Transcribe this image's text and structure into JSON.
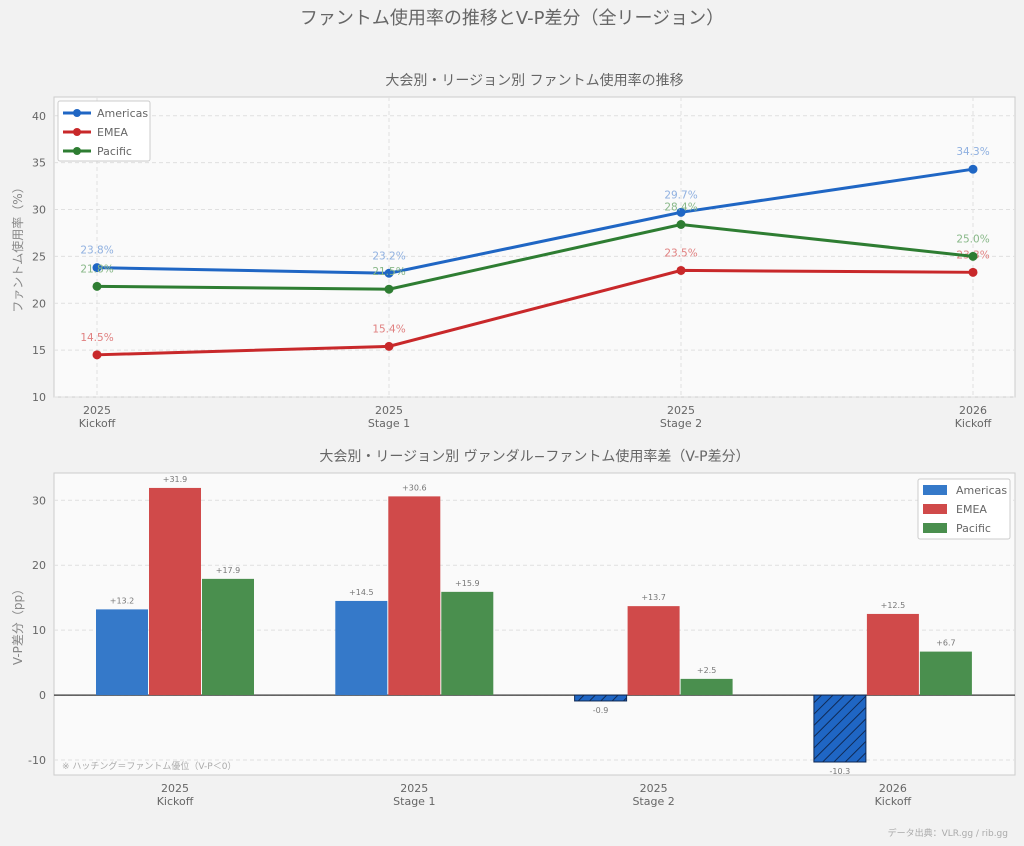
{
  "suptitle": "ファントム使用率の推移とV-P差分（全リージョン）",
  "source": "データ出典：VLR.gg / rib.gg",
  "colors": {
    "Americas": "#1f66c4",
    "EMEA": "#c8282a",
    "Pacific": "#2e7d32",
    "AmericasBar": "#3579c9",
    "EMEABar": "#d04a4a",
    "PacificBar": "#4a8f4e"
  },
  "chart_data": [
    {
      "type": "line",
      "title": "大会別・リージョン別 ファントム使用率の推移",
      "xlabel": "",
      "ylabel": "ファントム使用率（%）",
      "ylim": [
        10,
        42
      ],
      "yticks": [
        10,
        15,
        20,
        25,
        30,
        35,
        40
      ],
      "categories": [
        "2025\nKickoff",
        "2025\nStage 1",
        "2025\nStage 2",
        "2026\nKickoff"
      ],
      "series": [
        {
          "name": "Americas",
          "values": [
            23.8,
            23.2,
            29.7,
            34.3
          ]
        },
        {
          "name": "EMEA",
          "values": [
            14.5,
            15.4,
            23.5,
            23.3
          ]
        },
        {
          "name": "Pacific",
          "values": [
            21.8,
            21.5,
            28.4,
            25.0
          ]
        }
      ],
      "legend": "top-left",
      "grid": true
    },
    {
      "type": "bar",
      "title": "大会別・リージョン別 ヴァンダル−ファントム使用率差（V-P差分）",
      "xlabel": "",
      "ylabel": "V-P差分（pp）",
      "ylim": [
        -12.3,
        34.2
      ],
      "yticks": [
        -10,
        0,
        10,
        20,
        30
      ],
      "categories": [
        "2025\nKickoff",
        "2025\nStage 1",
        "2025\nStage 2",
        "2026\nKickoff"
      ],
      "series": [
        {
          "name": "Americas",
          "values": [
            13.2,
            14.5,
            -0.9,
            -10.3
          ]
        },
        {
          "name": "EMEA",
          "values": [
            31.9,
            30.6,
            13.7,
            12.5
          ]
        },
        {
          "name": "Pacific",
          "values": [
            17.9,
            15.9,
            2.5,
            6.7
          ]
        }
      ],
      "legend": "top-right",
      "grid": true,
      "annotation": "※ ハッチング＝ファントム優位（V-P＜0）"
    }
  ]
}
